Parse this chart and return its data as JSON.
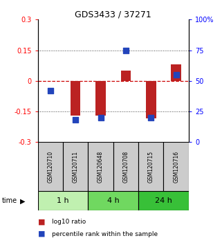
{
  "title": "GDS3433 / 37271",
  "samples": [
    "GSM120710",
    "GSM120711",
    "GSM120648",
    "GSM120708",
    "GSM120715",
    "GSM120716"
  ],
  "log10_ratio": [
    0.0,
    -0.17,
    -0.17,
    0.05,
    -0.185,
    0.08
  ],
  "percentile_rank": [
    42,
    18,
    20,
    75,
    20,
    55
  ],
  "ylim_left": [
    -0.3,
    0.3
  ],
  "ylim_right": [
    0,
    100
  ],
  "yticks_left": [
    -0.3,
    -0.15,
    0.0,
    0.15,
    0.3
  ],
  "yticks_right": [
    0,
    25,
    50,
    75,
    100
  ],
  "ytick_labels_left": [
    "-0.3",
    "-0.15",
    "0",
    "0.15",
    "0.3"
  ],
  "ytick_labels_right": [
    "0",
    "25",
    "50",
    "75",
    "100%"
  ],
  "groups": [
    {
      "label": "1 h",
      "indices": [
        0,
        1
      ],
      "color": "#c0f0b0"
    },
    {
      "label": "4 h",
      "indices": [
        2,
        3
      ],
      "color": "#70d860"
    },
    {
      "label": "24 h",
      "indices": [
        4,
        5
      ],
      "color": "#38c038"
    }
  ],
  "bar_color": "#bb2222",
  "dot_color": "#2244bb",
  "bar_width": 0.4,
  "dot_size": 40,
  "zero_line_color": "#cc0000",
  "grid_line_color": "#444444",
  "sample_box_color": "#cccccc",
  "background_color": "#ffffff",
  "legend_red": "log10 ratio",
  "legend_blue": "percentile rank within the sample",
  "time_label": "time"
}
